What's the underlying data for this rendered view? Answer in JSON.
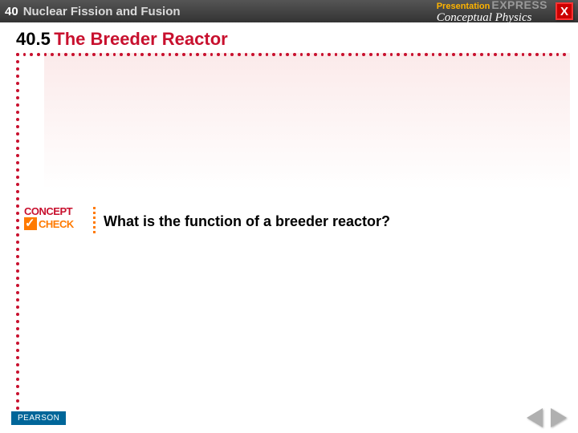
{
  "header": {
    "chapter_num": "40",
    "chapter_title": "Nuclear Fission and Fusion",
    "brand_prefix": "Presentation",
    "brand_suffix": "EXPRESS",
    "book_title": "Conceptual Physics",
    "close_label": "X"
  },
  "section": {
    "number": "40.5",
    "name": "The Breeder Reactor"
  },
  "concept_check": {
    "label_top": "CONCEPT",
    "label_bottom": "CHECK",
    "question": "What is the function of a breeder reactor?"
  },
  "footer": {
    "publisher": "PEARSON"
  },
  "colors": {
    "header_bg": "#3a3a3a",
    "accent_red": "#c8102e",
    "accent_orange": "#ff7a00",
    "fade_top": "#fbeaea",
    "pearson_bg": "#006699",
    "close_bg": "#c00",
    "nav_btn": "#b0b0b0"
  }
}
